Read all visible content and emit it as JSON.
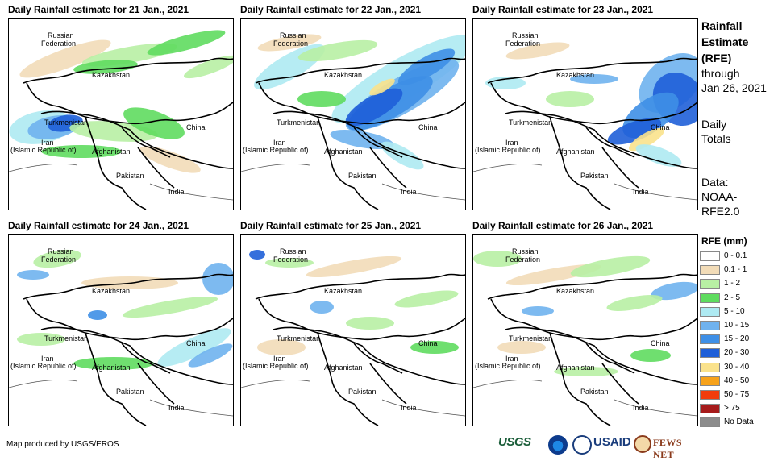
{
  "panels": [
    {
      "title": "Daily Rainfall estimate for 21 Jan., 2021"
    },
    {
      "title": "Daily Rainfall estimate for 22 Jan., 2021"
    },
    {
      "title": "Daily Rainfall estimate for 23 Jan., 2021"
    },
    {
      "title": "Daily Rainfall estimate for 24 Jan., 2021"
    },
    {
      "title": "Daily Rainfall estimate for 25 Jan., 2021"
    },
    {
      "title": "Daily Rainfall estimate for 26 Jan., 2021"
    }
  ],
  "places": {
    "russia": [
      "Russian",
      "Federation"
    ],
    "kazakhstan": "Kazakhstan",
    "turkmenistan": "Turkmenistan",
    "china": "China",
    "iran": [
      "Iran",
      "(Islamic Republic of)"
    ],
    "afghanistan": "Afghanistan",
    "pakistan": "Pakistan",
    "india": "India"
  },
  "side": {
    "title_lines": [
      "Rainfall",
      "Estimate",
      "(RFE)"
    ],
    "through_lines": [
      "through",
      "Jan 26, 2021"
    ],
    "totals_lines": [
      "Daily",
      "Totals"
    ],
    "data_lines": [
      "Data:",
      "NOAA-",
      "RFE2.0"
    ]
  },
  "legend": {
    "title": "RFE (mm)",
    "items": [
      {
        "label": "0 - 0.1",
        "color": "#ffffff"
      },
      {
        "label": "0.1 - 1",
        "color": "#f2dcb8"
      },
      {
        "label": "1 - 2",
        "color": "#b8f0a4"
      },
      {
        "label": "2 - 5",
        "color": "#5fdc5f"
      },
      {
        "label": "5 - 10",
        "color": "#aeeaf2"
      },
      {
        "label": "10 - 15",
        "color": "#6fb2ee"
      },
      {
        "label": "15 - 20",
        "color": "#3e8fe6"
      },
      {
        "label": "20 - 30",
        "color": "#1f5fd8"
      },
      {
        "label": "30 - 40",
        "color": "#fae28c"
      },
      {
        "label": "40 - 50",
        "color": "#f7a21a"
      },
      {
        "label": "50 - 75",
        "color": "#f03c0c"
      },
      {
        "label": "> 75",
        "color": "#a61b1b"
      },
      {
        "label": "No Data",
        "color": "#8c8c8c"
      }
    ]
  },
  "credit": "Map produced by USGS/EROS",
  "logos": {
    "usgs": "USGS",
    "noaa": "noaa-logo",
    "usaid": "USAID",
    "fews": "FEWS NET"
  }
}
